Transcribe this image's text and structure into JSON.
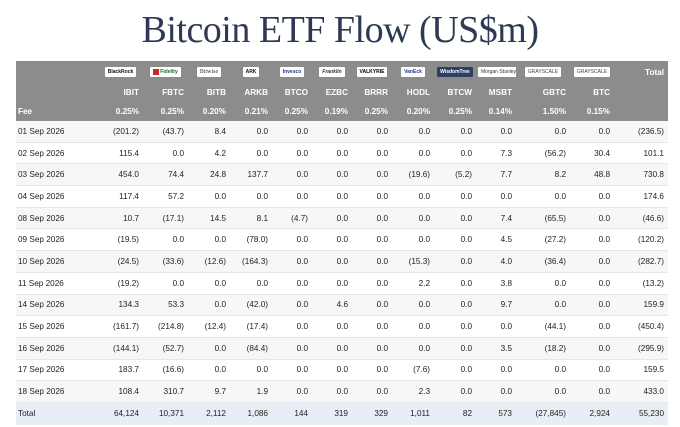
{
  "title": "Bitcoin ETF Flow (US$m)",
  "colors": {
    "header_bg": "#8c8c8c",
    "negative": "#e0271d",
    "zero": "#c4c4c4",
    "total_row_bg": "#e8edf6",
    "title": "#2e3a55"
  },
  "issuer_logos": [
    {
      "icon": "blackrock-logo",
      "text": "BlackRock"
    },
    {
      "icon": "fidelity-logo",
      "text": "Fidelity"
    },
    {
      "icon": "bitwise-logo",
      "text": "Bitwise"
    },
    {
      "icon": "ark-logo",
      "text": "ARK"
    },
    {
      "icon": "invesco-logo",
      "text": "Invesco"
    },
    {
      "icon": "franklin-logo",
      "text": "Franklin"
    },
    {
      "icon": "valkyrie-logo",
      "text": "VALKYRIE"
    },
    {
      "icon": "vaneck-logo",
      "text": "VanEck"
    },
    {
      "icon": "wisdomtree-logo",
      "text": "WisdomTree"
    },
    {
      "icon": "morgan-stanley-logo",
      "text": "Morgan Stanley"
    },
    {
      "icon": "grayscale-logo",
      "text": "GRAYSCALE"
    },
    {
      "icon": "grayscale-logo",
      "text": "GRAYSCALE"
    }
  ],
  "total_label": "Total",
  "tickers": [
    "IBIT",
    "FBTC",
    "BITB",
    "ARKB",
    "BTCO",
    "EZBC",
    "BRRR",
    "HODL",
    "BTCW",
    "MSBT",
    "GBTC",
    "BTC"
  ],
  "fee_label": "Fee",
  "fees": [
    "0.25%",
    "0.25%",
    "0.20%",
    "0.21%",
    "0.25%",
    "0.19%",
    "0.25%",
    "0.20%",
    "0.25%",
    "0.14%",
    "1.50%",
    "0.15%"
  ],
  "rows": [
    {
      "date": "01 Sep 2026",
      "values": [
        "(201.2)",
        "(43.7)",
        "8.4",
        "0.0",
        "0.0",
        "0.0",
        "0.0",
        "0.0",
        "0.0",
        "0.0",
        "0.0",
        "0.0"
      ],
      "total": "(236.5)"
    },
    {
      "date": "02 Sep 2026",
      "values": [
        "115.4",
        "0.0",
        "4.2",
        "0.0",
        "0.0",
        "0.0",
        "0.0",
        "0.0",
        "0.0",
        "7.3",
        "(56.2)",
        "30.4"
      ],
      "total": "101.1"
    },
    {
      "date": "03 Sep 2026",
      "values": [
        "454.0",
        "74.4",
        "24.8",
        "137.7",
        "0.0",
        "0.0",
        "0.0",
        "(19.6)",
        "(5.2)",
        "7.7",
        "8.2",
        "48.8"
      ],
      "total": "730.8"
    },
    {
      "date": "04 Sep 2026",
      "values": [
        "117.4",
        "57.2",
        "0.0",
        "0.0",
        "0.0",
        "0.0",
        "0.0",
        "0.0",
        "0.0",
        "0.0",
        "0.0",
        "0.0"
      ],
      "total": "174.6"
    },
    {
      "date": "08 Sep 2026",
      "values": [
        "10.7",
        "(17.1)",
        "14.5",
        "8.1",
        "(4.7)",
        "0.0",
        "0.0",
        "0.0",
        "0.0",
        "7.4",
        "(65.5)",
        "0.0"
      ],
      "total": "(46.6)"
    },
    {
      "date": "09 Sep 2026",
      "values": [
        "(19.5)",
        "0.0",
        "0.0",
        "(78.0)",
        "0.0",
        "0.0",
        "0.0",
        "0.0",
        "0.0",
        "4.5",
        "(27.2)",
        "0.0"
      ],
      "total": "(120.2)"
    },
    {
      "date": "10 Sep 2026",
      "values": [
        "(24.5)",
        "(33.6)",
        "(12.6)",
        "(164.3)",
        "0.0",
        "0.0",
        "0.0",
        "(15.3)",
        "0.0",
        "4.0",
        "(36.4)",
        "0.0"
      ],
      "total": "(282.7)"
    },
    {
      "date": "11 Sep 2026",
      "values": [
        "(19.2)",
        "0.0",
        "0.0",
        "0.0",
        "0.0",
        "0.0",
        "0.0",
        "2.2",
        "0.0",
        "3.8",
        "0.0",
        "0.0"
      ],
      "total": "(13.2)"
    },
    {
      "date": "14 Sep 2026",
      "values": [
        "134.3",
        "53.3",
        "0.0",
        "(42.0)",
        "0.0",
        "4.6",
        "0.0",
        "0.0",
        "0.0",
        "9.7",
        "0.0",
        "0.0"
      ],
      "total": "159.9"
    },
    {
      "date": "15 Sep 2026",
      "values": [
        "(161.7)",
        "(214.8)",
        "(12.4)",
        "(17.4)",
        "0.0",
        "0.0",
        "0.0",
        "0.0",
        "0.0",
        "0.0",
        "(44.1)",
        "0.0"
      ],
      "total": "(450.4)"
    },
    {
      "date": "16 Sep 2026",
      "values": [
        "(144.1)",
        "(52.7)",
        "0.0",
        "(84.4)",
        "0.0",
        "0.0",
        "0.0",
        "0.0",
        "0.0",
        "3.5",
        "(18.2)",
        "0.0"
      ],
      "total": "(295.9)"
    },
    {
      "date": "17 Sep 2026",
      "values": [
        "183.7",
        "(16.6)",
        "0.0",
        "0.0",
        "0.0",
        "0.0",
        "0.0",
        "(7.6)",
        "0.0",
        "0.0",
        "0.0",
        "0.0"
      ],
      "total": "159.5"
    },
    {
      "date": "18 Sep 2026",
      "values": [
        "108.4",
        "310.7",
        "9.7",
        "1.9",
        "0.0",
        "0.0",
        "0.0",
        "2.3",
        "0.0",
        "0.0",
        "0.0",
        "0.0"
      ],
      "total": "433.0"
    }
  ],
  "totals": {
    "label": "Total",
    "values": [
      "64,124",
      "10,371",
      "2,112",
      "1,086",
      "144",
      "319",
      "329",
      "1,011",
      "82",
      "573",
      "(27,845)",
      "2,924"
    ],
    "total": "55,230"
  }
}
